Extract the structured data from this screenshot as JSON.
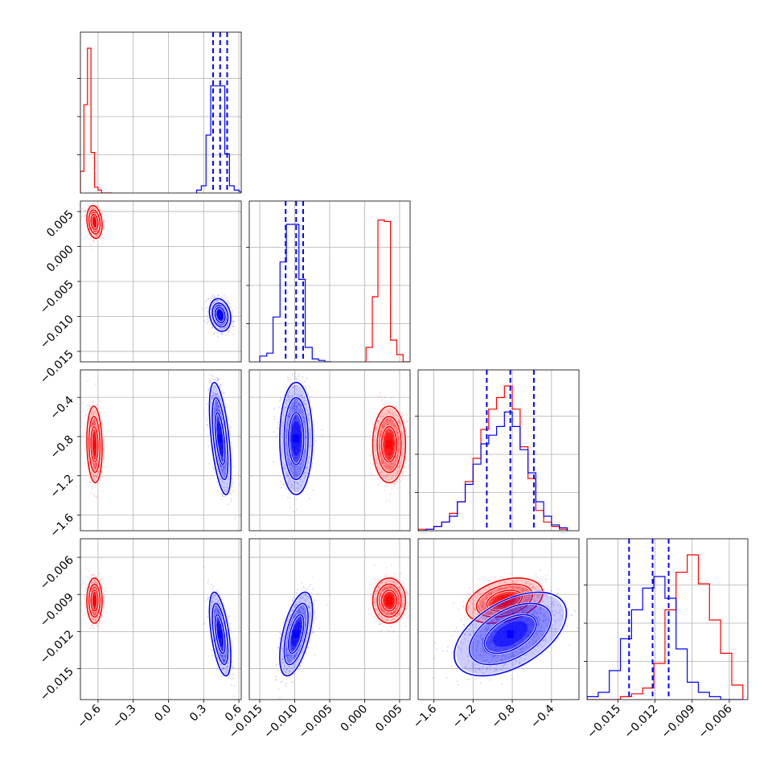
{
  "chart_data": {
    "type": "corner",
    "title": "",
    "colors": {
      "series_a": "#ff0000",
      "series_b": "#0000ff",
      "grid": "#b0b0b0",
      "frame": "#000000"
    },
    "grid": true,
    "parameters": [
      {
        "index": 0,
        "range": [
          -0.75,
          0.62
        ],
        "ticks": [
          "−0.6",
          "−0.3",
          "0.0",
          "0.3",
          "0.6"
        ],
        "tick_values": [
          -0.6,
          -0.3,
          0.0,
          0.3,
          0.6
        ]
      },
      {
        "index": 1,
        "range": [
          -0.0165,
          0.0065
        ],
        "ticks": [
          "−0.015",
          "−0.010",
          "−0.005",
          "0.000",
          "0.005"
        ],
        "tick_values": [
          -0.015,
          -0.01,
          -0.005,
          0.0,
          0.005
        ]
      },
      {
        "index": 2,
        "range": [
          -1.76,
          -0.12
        ],
        "ticks": [
          "−1.6",
          "−1.2",
          "−0.8",
          "−0.4"
        ],
        "tick_values": [
          -1.6,
          -1.2,
          -0.8,
          -0.4
        ]
      },
      {
        "index": 3,
        "range": [
          -0.0175,
          -0.0045
        ],
        "ticks": [
          "−0.015",
          "−0.012",
          "−0.009",
          "−0.006"
        ],
        "tick_values": [
          -0.015,
          -0.012,
          -0.009,
          -0.006
        ]
      }
    ],
    "series": [
      {
        "name": "",
        "color": "#ff0000",
        "means": [
          -0.63,
          0.0035,
          -0.88,
          -0.0095
        ],
        "sds": [
          0.025,
          0.0009,
          0.15,
          0.0007
        ],
        "quantiles": null,
        "histograms": [
          {
            "bins": [
              -0.75,
              -0.72,
              -0.69,
              -0.66,
              -0.63,
              -0.6,
              -0.57,
              -0.54,
              -0.51,
              -0.48
            ],
            "counts": [
              0.15,
              0.61,
              1.0,
              0.28,
              0.04,
              0.02,
              0.0,
              0.0,
              0.0,
              0.0
            ]
          },
          {
            "bins": [
              0.0002,
              0.0011,
              0.0019,
              0.0028,
              0.0037,
              0.0046,
              0.0055,
              0.0065
            ],
            "counts": [
              0.1,
              0.45,
              0.98,
              0.97,
              0.15,
              0.05,
              0.0
            ]
          },
          {
            "bins": [
              -1.76,
              -1.68,
              -1.6,
              -1.52,
              -1.44,
              -1.36,
              -1.28,
              -1.2,
              -1.12,
              -1.04,
              -0.96,
              -0.88,
              -0.8,
              -0.72,
              -0.64,
              -0.56,
              -0.48,
              -0.4,
              -0.32,
              -0.24
            ],
            "counts": [
              0.01,
              0.01,
              0.03,
              0.06,
              0.12,
              0.2,
              0.34,
              0.5,
              0.7,
              0.84,
              0.92,
              1.0,
              0.84,
              0.58,
              0.36,
              0.14,
              0.06,
              0.03,
              0.01
            ]
          },
          {
            "bins": [
              -0.0175,
              -0.0166,
              -0.0157,
              -0.0148,
              -0.0139,
              -0.013,
              -0.0121,
              -0.0112,
              -0.0103,
              -0.0094,
              -0.0085,
              -0.0076,
              -0.0067,
              -0.0058,
              -0.0049
            ],
            "counts": [
              0.0,
              0.0,
              0.0,
              0.02,
              0.04,
              0.08,
              0.25,
              0.62,
              0.88,
              1.0,
              0.8,
              0.55,
              0.32,
              0.1
            ]
          }
        ]
      },
      {
        "name": "",
        "color": "#0000ff",
        "means": [
          0.44,
          -0.0098,
          -0.82,
          -0.0122
        ],
        "sds": [
          0.035,
          0.0009,
          0.22,
          0.0013
        ],
        "quantiles": [
          [
            0.38,
            0.44,
            0.5
          ],
          [
            -0.0113,
            -0.0098,
            -0.0088
          ],
          [
            -1.06,
            -0.82,
            -0.58
          ],
          [
            -0.0141,
            -0.0122,
            -0.0109
          ]
        ],
        "histograms": [
          {
            "bins": [
              0.24,
              0.28,
              0.32,
              0.36,
              0.4,
              0.44,
              0.48,
              0.52,
              0.56,
              0.6,
              0.62
            ],
            "counts": [
              0.02,
              0.05,
              0.4,
              0.74,
              0.74,
              0.74,
              0.27,
              0.05,
              0.02,
              0.01
            ]
          },
          {
            "bins": [
              -0.015,
              -0.014,
              -0.0131,
              -0.0121,
              -0.0112,
              -0.0103,
              -0.0094,
              -0.0085,
              -0.0075,
              -0.0066,
              -0.0057,
              -0.0048
            ],
            "counts": [
              0.04,
              0.06,
              0.31,
              0.69,
              0.95,
              0.95,
              0.57,
              0.1,
              0.02,
              0.01,
              0.0
            ]
          },
          {
            "bins": [
              -1.76,
              -1.68,
              -1.6,
              -1.52,
              -1.44,
              -1.36,
              -1.28,
              -1.2,
              -1.12,
              -1.04,
              -0.96,
              -0.88,
              -0.8,
              -0.72,
              -0.64,
              -0.56,
              -0.48,
              -0.4,
              -0.32,
              -0.24
            ],
            "counts": [
              0.0,
              0.01,
              0.03,
              0.06,
              0.1,
              0.2,
              0.32,
              0.46,
              0.6,
              0.66,
              0.72,
              0.82,
              0.72,
              0.56,
              0.4,
              0.2,
              0.1,
              0.04,
              0.02
            ]
          },
          {
            "bins": [
              -0.0175,
              -0.0166,
              -0.0157,
              -0.0148,
              -0.0139,
              -0.013,
              -0.0121,
              -0.0112,
              -0.0103,
              -0.0094,
              -0.0085,
              -0.0076,
              -0.0067,
              -0.0058,
              -0.0049
            ],
            "counts": [
              0.02,
              0.05,
              0.2,
              0.42,
              0.62,
              0.77,
              0.85,
              0.7,
              0.35,
              0.12,
              0.05,
              0.02,
              0.0,
              0.0
            ]
          }
        ]
      }
    ],
    "correlations": {
      "0-1": -0.2,
      "0-2": -0.1,
      "0-3": 0.0,
      "1-2": 0.0,
      "1-3": 0.0,
      "2-3": 0.35
    },
    "series_corr_overrides": {
      "blue": {
        "0-2": -0.55,
        "0-3": -0.55,
        "1-3": 0.55,
        "2-3": 0.5
      }
    }
  }
}
